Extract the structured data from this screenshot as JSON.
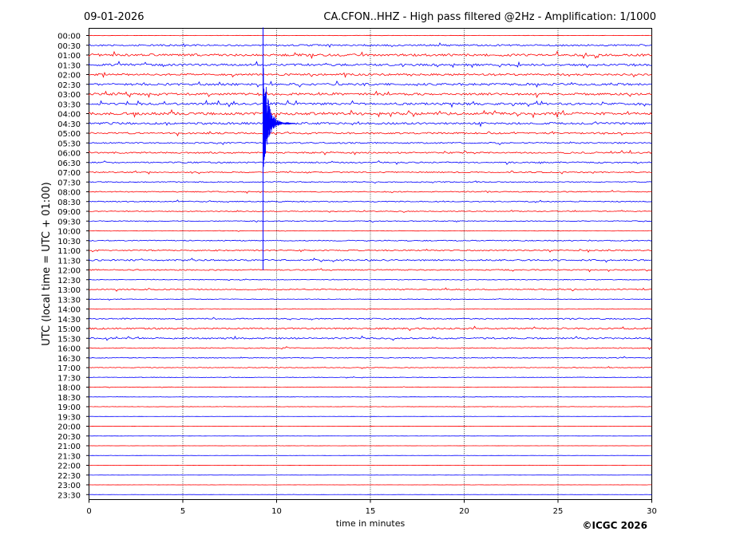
{
  "chart_data": {
    "type": "line",
    "title_left": "09-01-2026",
    "title_right": "CA.CFON..HHZ - High pass filtered @2Hz - Amplification: 1/1000",
    "xlabel": "time in minutes",
    "ylabel": "UTC (local time = UTC + 01:00)",
    "copyright": "©ICGC 2026",
    "xlim": [
      0,
      30
    ],
    "x_ticks": [
      "0",
      "5",
      "10",
      "15",
      "20",
      "25",
      "30"
    ],
    "x_tick_values": [
      0,
      5,
      10,
      15,
      20,
      25,
      30
    ],
    "row_labels": [
      "00:00",
      "00:30",
      "01:00",
      "01:30",
      "02:00",
      "02:30",
      "03:00",
      "03:30",
      "04:00",
      "04:30",
      "05:00",
      "05:30",
      "06:00",
      "06:30",
      "07:00",
      "07:30",
      "08:00",
      "08:30",
      "09:00",
      "09:30",
      "10:00",
      "10:30",
      "11:00",
      "11:30",
      "12:00",
      "12:30",
      "13:00",
      "13:30",
      "14:00",
      "14:30",
      "15:00",
      "15:30",
      "16:00",
      "16:30",
      "17:00",
      "17:30",
      "18:00",
      "18:30",
      "19:00",
      "19:30",
      "20:00",
      "20:30",
      "21:00",
      "21:30",
      "22:00",
      "22:30",
      "23:00",
      "23:30"
    ],
    "row_colors": [
      "#ff0000",
      "#0000ff"
    ],
    "noise_levels": [
      0.2,
      1.0,
      1.4,
      1.3,
      1.1,
      1.3,
      1.3,
      1.3,
      1.5,
      1.2,
      1.0,
      0.8,
      0.9,
      0.8,
      0.7,
      0.6,
      0.6,
      0.6,
      0.5,
      0.5,
      0.3,
      0.6,
      0.7,
      0.9,
      0.7,
      0.4,
      0.7,
      0.4,
      0.4,
      0.7,
      0.9,
      0.9,
      0.6,
      0.5,
      0.4,
      0.3,
      0.3,
      0.2,
      0.2,
      0.1,
      0.1,
      0.1,
      0.1,
      0.1,
      0.1,
      0.1,
      0.1,
      0.1
    ],
    "event": {
      "description": "earthquake",
      "time_minutes": 9.3,
      "row_start": "00:00",
      "row_end": "12:00",
      "peak_row": "04:30"
    },
    "grid": "vertical dotted at 5-minute intervals"
  }
}
